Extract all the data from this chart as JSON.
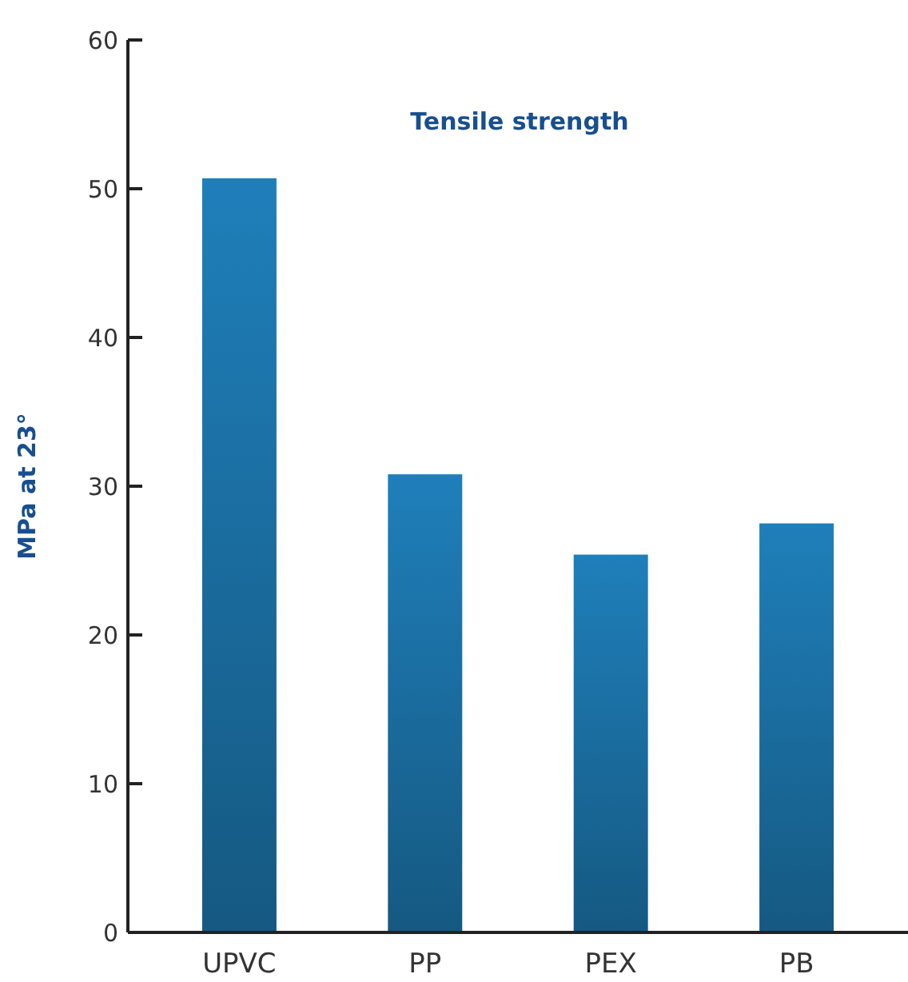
{
  "chart_data": {
    "type": "bar",
    "title": "Tensile strength",
    "ylabel": "MPa at 23°",
    "categories": [
      "UPVC",
      "PP",
      "PEX",
      "PB"
    ],
    "values": [
      50.7,
      30.8,
      25.4,
      27.5
    ],
    "color": "#1a6c9e",
    "ylim": [
      0,
      60
    ],
    "yticks": [
      0,
      10,
      20,
      30,
      40,
      50,
      60
    ],
    "grid": false
  }
}
